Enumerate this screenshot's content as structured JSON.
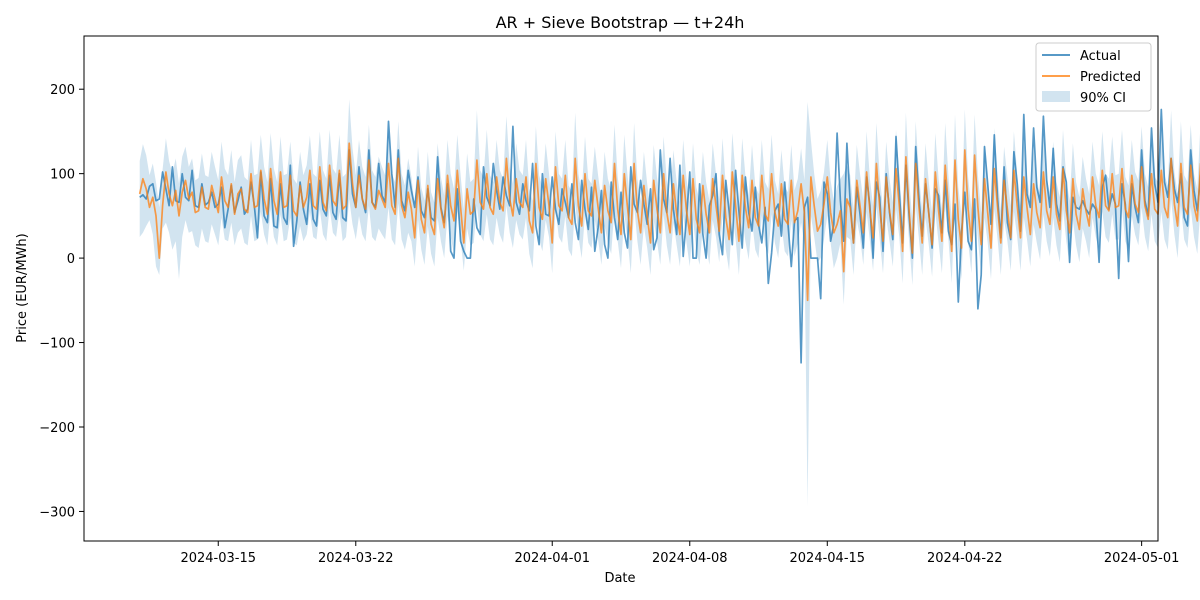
{
  "chart_data": {
    "type": "line",
    "title": "AR + Sieve Bootstrap — t+24h",
    "xlabel": "Date",
    "ylabel": "Price (EUR/MWh)",
    "x_range": [
      "2024-03-08T04:00",
      "2024-05-01T20:00"
    ],
    "ylim": [
      -335,
      263
    ],
    "x_ticks": [
      "2024-03-15",
      "2024-03-22",
      "2024-04-01",
      "2024-04-08",
      "2024-04-15",
      "2024-04-22",
      "2024-05-01"
    ],
    "y_ticks": [
      200,
      100,
      0,
      -100,
      -200,
      -300
    ],
    "y_tick_labels": [
      "200",
      "100",
      "0",
      "−100",
      "−200",
      "−300"
    ],
    "legend_position": "top-right",
    "grid": false,
    "series": [
      {
        "name": "Actual",
        "type": "line",
        "color": "#1f77b4"
      },
      {
        "name": "Predicted",
        "type": "line",
        "color": "#ff7f0e"
      },
      {
        "name": "90% CI",
        "type": "band",
        "color": "#1f77b4"
      }
    ],
    "sample_interval_hours": 4,
    "start": "2024-03-11T00:00",
    "actual": [
      72,
      75,
      70,
      85,
      88,
      68,
      70,
      102,
      82,
      62,
      108,
      68,
      66,
      100,
      72,
      68,
      104,
      62,
      60,
      88,
      63,
      66,
      78,
      60,
      64,
      84,
      36,
      58,
      86,
      54,
      68,
      84,
      52,
      58,
      90,
      62,
      24,
      102,
      50,
      42,
      94,
      38,
      36,
      88,
      48,
      40,
      110,
      14,
      44,
      90,
      58,
      40,
      88,
      46,
      38,
      92,
      58,
      50,
      98,
      54,
      46,
      100,
      48,
      44,
      128,
      76,
      60,
      108,
      70,
      54,
      128,
      66,
      60,
      112,
      74,
      66,
      162,
      100,
      60,
      128,
      68,
      56,
      104,
      80,
      60,
      96,
      56,
      48,
      82,
      48,
      44,
      120,
      60,
      42,
      88,
      8,
      0,
      82,
      20,
      8,
      0,
      0,
      70,
      36,
      28,
      108,
      72,
      62,
      112,
      80,
      58,
      96,
      74,
      62,
      156,
      66,
      52,
      88,
      68,
      56,
      112,
      38,
      16,
      100,
      52,
      50,
      96,
      58,
      40,
      82,
      66,
      48,
      88,
      42,
      22,
      92,
      58,
      34,
      84,
      8,
      36,
      80,
      16,
      0,
      90,
      48,
      22,
      78,
      30,
      12,
      108,
      64,
      54,
      92,
      64,
      40,
      82,
      10,
      24,
      128,
      70,
      54,
      118,
      58,
      28,
      110,
      2,
      48,
      102,
      0,
      0,
      88,
      28,
      0,
      62,
      74,
      100,
      28,
      4,
      92,
      56,
      16,
      104,
      56,
      12,
      96,
      54,
      32,
      84,
      40,
      18,
      60,
      -30,
      6,
      56,
      64,
      26,
      90,
      40,
      -10,
      44,
      48,
      -124,
      60,
      72,
      0,
      0,
      0,
      -48,
      90,
      76,
      20,
      40,
      148,
      68,
      20,
      136,
      66,
      18,
      84,
      52,
      12,
      96,
      62,
      0,
      90,
      72,
      8,
      100,
      54,
      22,
      144,
      78,
      18,
      110,
      50,
      0,
      132,
      70,
      26,
      88,
      54,
      12,
      82,
      74,
      30,
      92,
      32,
      16,
      64,
      -52,
      30,
      78,
      20,
      10,
      70,
      -60,
      -20,
      132,
      88,
      40,
      146,
      70,
      24,
      108,
      42,
      22,
      126,
      88,
      32,
      170,
      76,
      60,
      154,
      84,
      66,
      168,
      92,
      60,
      130,
      64,
      44,
      108,
      90,
      -5,
      72,
      60,
      58,
      68,
      58,
      52,
      64,
      58,
      -5,
      84,
      98,
      58,
      76,
      64,
      -24,
      88,
      64,
      -4,
      88,
      60,
      42,
      128,
      68,
      50,
      154,
      88,
      66,
      176,
      90,
      72,
      118,
      82,
      66,
      100,
      48,
      38,
      128,
      80,
      56,
      98,
      92,
      64,
      126,
      66,
      50,
      140,
      94,
      76,
      124,
      98,
      70,
      136,
      78,
      64,
      120,
      70,
      0,
      0,
      90,
      42,
      -62,
      40,
      -66,
      30,
      78,
      60,
      112
    ],
    "predicted": [
      76,
      94,
      82,
      60,
      72,
      50,
      0,
      62,
      102,
      76,
      62,
      80,
      50,
      78,
      92,
      70,
      78,
      54,
      56,
      84,
      60,
      58,
      86,
      70,
      54,
      96,
      68,
      60,
      88,
      52,
      76,
      82,
      58,
      54,
      100,
      60,
      62,
      104,
      70,
      52,
      106,
      68,
      52,
      102,
      60,
      62,
      98,
      56,
      50,
      86,
      60,
      72,
      104,
      62,
      58,
      108,
      66,
      56,
      110,
      68,
      62,
      104,
      58,
      62,
      136,
      88,
      60,
      98,
      70,
      58,
      116,
      66,
      58,
      80,
      70,
      60,
      112,
      62,
      52,
      118,
      62,
      48,
      78,
      58,
      24,
      92,
      46,
      30,
      86,
      40,
      28,
      94,
      58,
      36,
      98,
      62,
      44,
      104,
      60,
      18,
      82,
      52,
      56,
      116,
      66,
      58,
      100,
      60,
      52,
      96,
      66,
      56,
      118,
      70,
      50,
      94,
      66,
      60,
      96,
      44,
      30,
      112,
      60,
      46,
      94,
      62,
      18,
      108,
      62,
      56,
      98,
      48,
      40,
      118,
      62,
      38,
      100,
      56,
      50,
      92,
      60,
      30,
      86,
      56,
      42,
      112,
      58,
      28,
      100,
      60,
      22,
      112,
      56,
      30,
      86,
      50,
      18,
      92,
      58,
      30,
      100,
      54,
      30,
      88,
      52,
      28,
      98,
      56,
      28,
      94,
      46,
      30,
      86,
      52,
      30,
      94,
      62,
      32,
      98,
      48,
      22,
      102,
      62,
      20,
      98,
      60,
      36,
      92,
      48,
      38,
      98,
      52,
      44,
      100,
      54,
      38,
      88,
      46,
      40,
      92,
      42,
      56,
      88,
      54,
      -50,
      96,
      62,
      32,
      40,
      64,
      96,
      54,
      30,
      40,
      56,
      -16,
      70,
      60,
      18,
      92,
      62,
      30,
      102,
      56,
      24,
      112,
      60,
      20,
      96,
      56,
      28,
      106,
      62,
      8,
      120,
      56,
      6,
      112,
      60,
      18,
      94,
      52,
      16,
      102,
      56,
      20,
      110,
      60,
      8,
      116,
      46,
      12,
      128,
      58,
      20,
      122,
      60,
      16,
      94,
      54,
      12,
      106,
      60,
      18,
      92,
      58,
      24,
      104,
      62,
      24,
      96,
      60,
      28,
      88,
      54,
      36,
      102,
      56,
      40,
      96,
      52,
      34,
      106,
      56,
      30,
      94,
      52,
      34,
      82,
      56,
      38,
      96,
      62,
      48,
      104,
      62,
      56,
      100,
      60,
      62,
      106,
      58,
      48,
      98,
      64,
      54,
      108,
      62,
      46,
      100,
      58,
      52,
      104,
      60,
      48,
      118,
      64,
      38,
      112,
      60,
      52,
      110,
      62,
      44,
      112,
      56,
      54,
      102,
      60,
      44,
      126,
      66,
      54,
      104,
      60,
      38,
      96,
      62,
      58,
      112,
      56,
      40,
      100,
      54,
      30,
      102,
      56,
      48,
      120,
      50,
      40,
      58,
      38
    ],
    "ci_lower": [
      25,
      30,
      38,
      45,
      28,
      -10,
      -20,
      35,
      42,
      30,
      10,
      20,
      -25,
      25,
      45,
      30,
      32,
      15,
      12,
      35,
      20,
      18,
      40,
      28,
      15,
      48,
      22,
      20,
      42,
      15,
      30,
      35,
      18,
      15,
      50,
      20,
      22,
      55,
      28,
      15,
      58,
      25,
      15,
      52,
      20,
      22,
      48,
      18,
      15,
      38,
      20,
      28,
      55,
      25,
      22,
      58,
      28,
      20,
      60,
      30,
      25,
      55,
      20,
      25,
      70,
      40,
      22,
      50,
      28,
      20,
      62,
      25,
      20,
      35,
      28,
      22,
      60,
      22,
      15,
      65,
      22,
      10,
      30,
      20,
      -10,
      45,
      10,
      -8,
      38,
      5,
      -10,
      48,
      20,
      0,
      50,
      25,
      5,
      55,
      22,
      -15,
      35,
      15,
      18,
      62,
      28,
      20,
      52,
      22,
      15,
      48,
      28,
      18,
      62,
      30,
      12,
      45,
      28,
      22,
      48,
      5,
      -12,
      60,
      22,
      8,
      45,
      25,
      -18,
      58,
      25,
      18,
      50,
      10,
      2,
      65,
      25,
      0,
      52,
      18,
      12,
      45,
      22,
      -8,
      38,
      18,
      5,
      60,
      20,
      -12,
      52,
      22,
      -18,
      62,
      20,
      -8,
      38,
      12,
      -20,
      45,
      20,
      -8,
      52,
      15,
      -8,
      42,
      15,
      -10,
      50,
      18,
      -10,
      46,
      8,
      -8,
      38,
      15,
      -8,
      45,
      25,
      -5,
      50,
      10,
      -15,
      52,
      22,
      -20,
      48,
      20,
      -2,
      45,
      10,
      0,
      50,
      15,
      5,
      52,
      18,
      0,
      40,
      8,
      2,
      45,
      2,
      18,
      42,
      15,
      -294,
      50,
      25,
      -5,
      0,
      22,
      50,
      18,
      -12,
      0,
      18,
      -55,
      25,
      22,
      -20,
      45,
      25,
      -8,
      55,
      20,
      -15,
      62,
      22,
      -18,
      48,
      20,
      -10,
      58,
      25,
      -30,
      70,
      20,
      -32,
      62,
      22,
      -20,
      48,
      15,
      -22,
      55,
      18,
      -18,
      60,
      22,
      -30,
      68,
      10,
      -25,
      75,
      20,
      -18,
      70,
      22,
      -20,
      48,
      18,
      -25,
      58,
      22,
      -20,
      45,
      20,
      -15,
      55,
      25,
      -15,
      48,
      22,
      -10,
      40,
      18,
      -2,
      52,
      20,
      2,
      48,
      15,
      -5,
      58,
      20,
      -8,
      45,
      15,
      -5,
      35,
      20,
      0,
      48,
      25,
      10,
      55,
      25,
      18,
      52,
      22,
      22,
      58,
      20,
      10,
      50,
      28,
      15,
      60,
      25,
      8,
      52,
      20,
      12,
      55,
      22,
      10,
      70,
      28,
      0,
      62,
      22,
      12,
      60,
      25,
      5,
      62,
      18,
      15,
      52,
      22,
      5,
      78,
      30,
      15,
      55,
      22,
      0,
      48,
      25,
      18,
      62,
      20,
      0,
      52,
      18,
      -10,
      52,
      20,
      10,
      72,
      15,
      0,
      -72,
      -78
    ],
    "ci_upper": [
      115,
      135,
      122,
      98,
      112,
      90,
      60,
      105,
      142,
      115,
      100,
      118,
      88,
      120,
      132,
      108,
      118,
      92,
      95,
      124,
      98,
      96,
      126,
      108,
      92,
      138,
      106,
      98,
      128,
      90,
      116,
      122,
      96,
      92,
      140,
      98,
      100,
      146,
      108,
      90,
      148,
      106,
      90,
      144,
      98,
      100,
      138,
      94,
      88,
      126,
      98,
      110,
      145,
      100,
      96,
      150,
      104,
      94,
      152,
      106,
      100,
      146,
      96,
      100,
      188,
      130,
      98,
      140,
      108,
      96,
      158,
      104,
      96,
      120,
      108,
      98,
      154,
      100,
      90,
      162,
      100,
      86,
      118,
      96,
      62,
      132,
      84,
      68,
      126,
      78,
      66,
      136,
      96,
      74,
      140,
      100,
      82,
      146,
      98,
      58,
      124,
      90,
      94,
      175,
      104,
      96,
      152,
      98,
      90,
      140,
      104,
      94,
      168,
      108,
      88,
      136,
      104,
      98,
      140,
      82,
      68,
      156,
      98,
      84,
      136,
      100,
      58,
      150,
      100,
      94,
      140,
      86,
      78,
      172,
      100,
      76,
      144,
      94,
      88,
      132,
      98,
      68,
      126,
      94,
      80,
      158,
      96,
      66,
      146,
      98,
      62,
      160,
      94,
      68,
      126,
      88,
      56,
      134,
      96,
      68,
      144,
      92,
      68,
      128,
      90,
      66,
      140,
      94,
      66,
      136,
      84,
      68,
      126,
      90,
      68,
      136,
      100,
      70,
      142,
      86,
      60,
      148,
      100,
      58,
      142,
      98,
      74,
      134,
      86,
      76,
      140,
      90,
      82,
      146,
      92,
      76,
      128,
      84,
      78,
      134,
      80,
      94,
      130,
      92,
      185,
      140,
      100,
      70,
      80,
      102,
      140,
      92,
      68,
      85,
      94,
      100,
      110,
      98,
      58,
      134,
      100,
      68,
      150,
      94,
      62,
      160,
      98,
      58,
      138,
      94,
      66,
      152,
      100,
      48,
      172,
      94,
      44,
      162,
      98,
      56,
      136,
      90,
      54,
      148,
      94,
      58,
      160,
      98,
      46,
      170,
      84,
      50,
      176,
      96,
      58,
      170,
      98,
      54,
      136,
      92,
      50,
      154,
      98,
      56,
      132,
      96,
      62,
      150,
      100,
      62,
      138,
      98,
      66,
      128,
      92,
      74,
      148,
      94,
      78,
      138,
      90,
      72,
      152,
      94,
      68,
      136,
      90,
      72,
      120,
      94,
      76,
      138,
      100,
      86,
      150,
      100,
      94,
      144,
      98,
      100,
      152,
      96,
      86,
      140,
      102,
      92,
      156,
      100,
      84,
      144,
      96,
      90,
      150,
      98,
      86,
      175,
      102,
      76,
      162,
      98,
      90,
      158,
      100,
      82,
      162,
      94,
      92,
      146,
      98,
      82,
      188,
      104,
      92,
      152,
      98,
      76,
      138,
      100,
      96,
      162,
      94,
      78,
      146,
      92,
      68,
      148,
      94,
      86,
      176,
      88,
      78,
      178,
      178
    ]
  }
}
